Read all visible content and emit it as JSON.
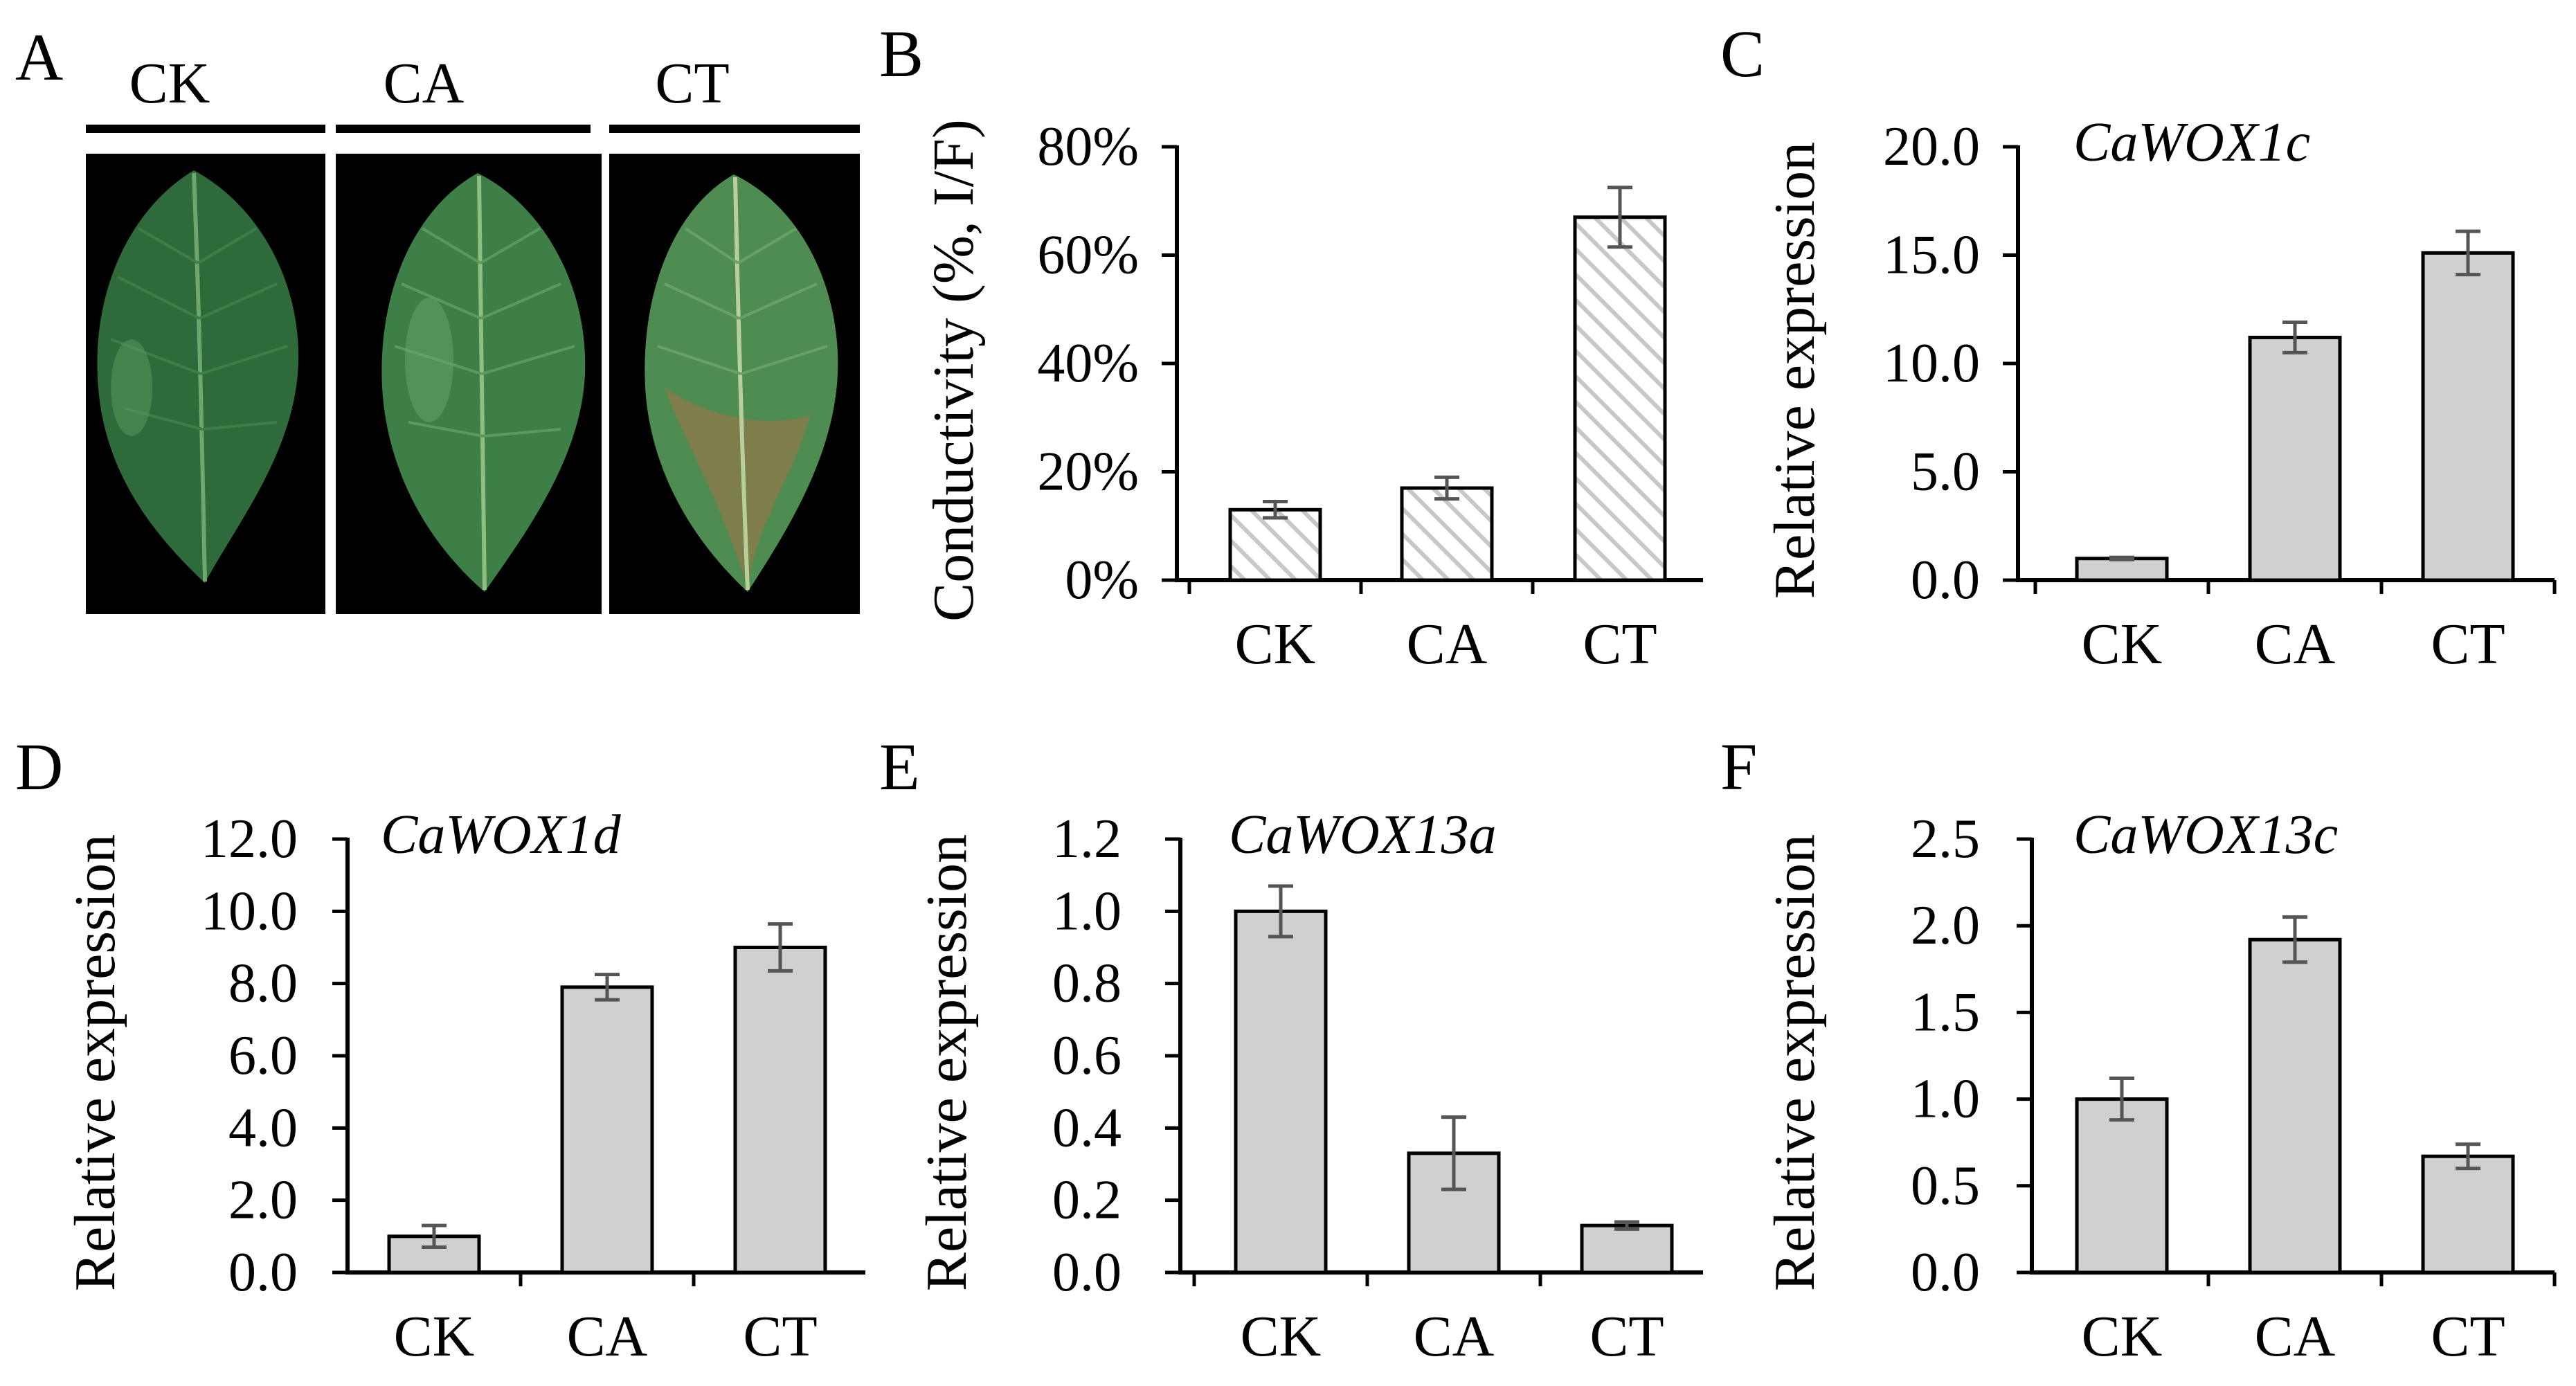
{
  "colors": {
    "bar_fill": "#d0d0d0",
    "bar_stroke": "#000000",
    "error_bar": "#555555",
    "hatch_line": "#c8c8c8",
    "photo_bg": "#000000",
    "leaf_dark": "#2f6b3a",
    "leaf_light": "#4e8c52",
    "leaf_damage": "#8a7a4a"
  },
  "panel_a": {
    "letter": "A",
    "labels": [
      "CK",
      "CA",
      "CT"
    ],
    "photo_description_icons": [
      "leaf-icon",
      "leaf-icon",
      "damaged-leaf-icon"
    ]
  },
  "chart_data": [
    {
      "panel": "B",
      "type": "bar",
      "hatched": true,
      "title": "",
      "gene": "",
      "ylabel": "Conductivity (%, I/F)",
      "xlabel": "",
      "categories": [
        "CK",
        "CA",
        "CT"
      ],
      "values": [
        13,
        17,
        67
      ],
      "errors": [
        1.5,
        2,
        5.5
      ],
      "ylim": [
        0,
        80
      ],
      "yticks": [
        0,
        20,
        40,
        60,
        80
      ],
      "ytick_labels": [
        "0%",
        "20%",
        "40%",
        "60%",
        "80%"
      ]
    },
    {
      "panel": "C",
      "type": "bar",
      "hatched": false,
      "title": "",
      "gene": "CaWOX1c",
      "ylabel": "Relative expression",
      "xlabel": "",
      "categories": [
        "CK",
        "CA",
        "CT"
      ],
      "values": [
        1.0,
        11.2,
        15.1
      ],
      "errors": [
        0.05,
        0.7,
        1.0
      ],
      "ylim": [
        0,
        20
      ],
      "yticks": [
        0,
        5,
        10,
        15,
        20
      ],
      "ytick_labels": [
        "0.0",
        "5.0",
        "10.0",
        "15.0",
        "20.0"
      ]
    },
    {
      "panel": "D",
      "type": "bar",
      "hatched": false,
      "title": "",
      "gene": "CaWOX1d",
      "ylabel": "Relative expression",
      "xlabel": "",
      "categories": [
        "CK",
        "CA",
        "CT"
      ],
      "values": [
        1.0,
        7.9,
        9.0
      ],
      "errors": [
        0.3,
        0.35,
        0.65
      ],
      "ylim": [
        0,
        12
      ],
      "yticks": [
        0,
        2,
        4,
        6,
        8,
        10,
        12
      ],
      "ytick_labels": [
        "0.0",
        "2.0",
        "4.0",
        "6.0",
        "8.0",
        "10.0",
        "12.0"
      ]
    },
    {
      "panel": "E",
      "type": "bar",
      "hatched": false,
      "title": "",
      "gene": "CaWOX13a",
      "ylabel": "Relative expression",
      "xlabel": "",
      "categories": [
        "CK",
        "CA",
        "CT"
      ],
      "values": [
        1.0,
        0.33,
        0.13
      ],
      "errors": [
        0.07,
        0.1,
        0.01
      ],
      "ylim": [
        0,
        1.2
      ],
      "yticks": [
        0,
        0.2,
        0.4,
        0.6,
        0.8,
        1.0,
        1.2
      ],
      "ytick_labels": [
        "0.0",
        "0.2",
        "0.4",
        "0.6",
        "0.8",
        "1.0",
        "1.2"
      ]
    },
    {
      "panel": "F",
      "type": "bar",
      "hatched": false,
      "title": "",
      "gene": "CaWOX13c",
      "ylabel": "Relative expression",
      "xlabel": "",
      "categories": [
        "CK",
        "CA",
        "CT"
      ],
      "values": [
        1.0,
        1.92,
        0.67
      ],
      "errors": [
        0.12,
        0.13,
        0.07
      ],
      "ylim": [
        0,
        2.5
      ],
      "yticks": [
        0,
        0.5,
        1.0,
        1.5,
        2.0,
        2.5
      ],
      "ytick_labels": [
        "0.0",
        "0.5",
        "1.0",
        "1.5",
        "2.0",
        "2.5"
      ]
    }
  ]
}
